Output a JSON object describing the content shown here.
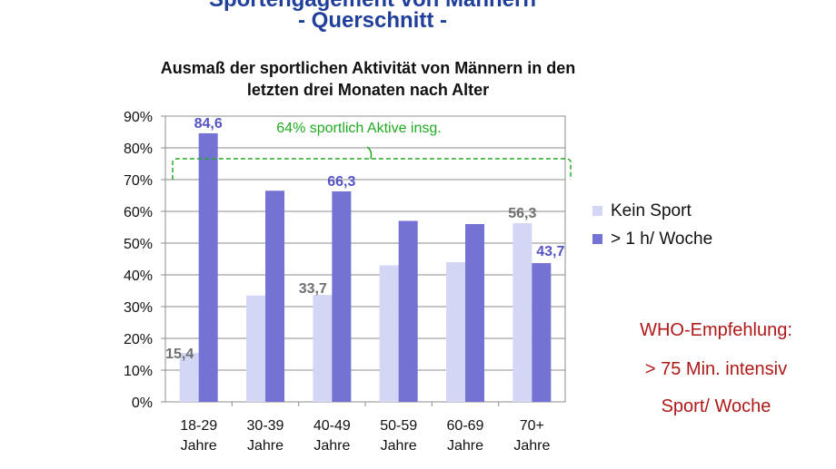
{
  "slide": {
    "title_line_1": "Sportengagement von Männern",
    "title_line_2": "- Querschnitt -"
  },
  "chart_data": {
    "type": "bar",
    "title_lines": [
      "Ausmaß der sportlichen Aktivität von Männern in den",
      "letzten drei Monaten nach Alter"
    ],
    "categories": [
      [
        "18-29",
        "Jahre"
      ],
      [
        "30-39",
        "Jahre"
      ],
      [
        "40-49",
        "Jahre"
      ],
      [
        "50-59",
        "Jahre"
      ],
      [
        "60-69",
        "Jahre"
      ],
      [
        "70+",
        "Jahre"
      ]
    ],
    "ylim": [
      0,
      90
    ],
    "yticks": [
      "0%",
      "10%",
      "20%",
      "30%",
      "40%",
      "50%",
      "60%",
      "70%",
      "80%",
      "90%"
    ],
    "grid": true,
    "legend_position": "right",
    "series": [
      {
        "name": "Kein Sport",
        "color": "#d4d6f6",
        "values": [
          15.4,
          33.5,
          33.7,
          43.0,
          44.0,
          56.3
        ],
        "labels": [
          "15,4",
          "",
          "33,7",
          "",
          "",
          "56,3"
        ],
        "label_color": "#6f6f6f"
      },
      {
        "name": "> 1 h/ Woche",
        "color": "#7472d2",
        "values": [
          84.6,
          66.5,
          66.3,
          57.0,
          56.0,
          43.7
        ],
        "labels": [
          "84,6",
          "",
          "66,3",
          "",
          "",
          "43,7"
        ],
        "label_color": "#5454c4"
      }
    ],
    "annotation": {
      "text": "64% sportlich Aktive insg.",
      "color": "#22aa22"
    }
  },
  "who_note": {
    "line_1": "WHO-Empfehlung:",
    "line_2": "> 75 Min. intensiv",
    "line_3": "Sport/ Woche"
  }
}
